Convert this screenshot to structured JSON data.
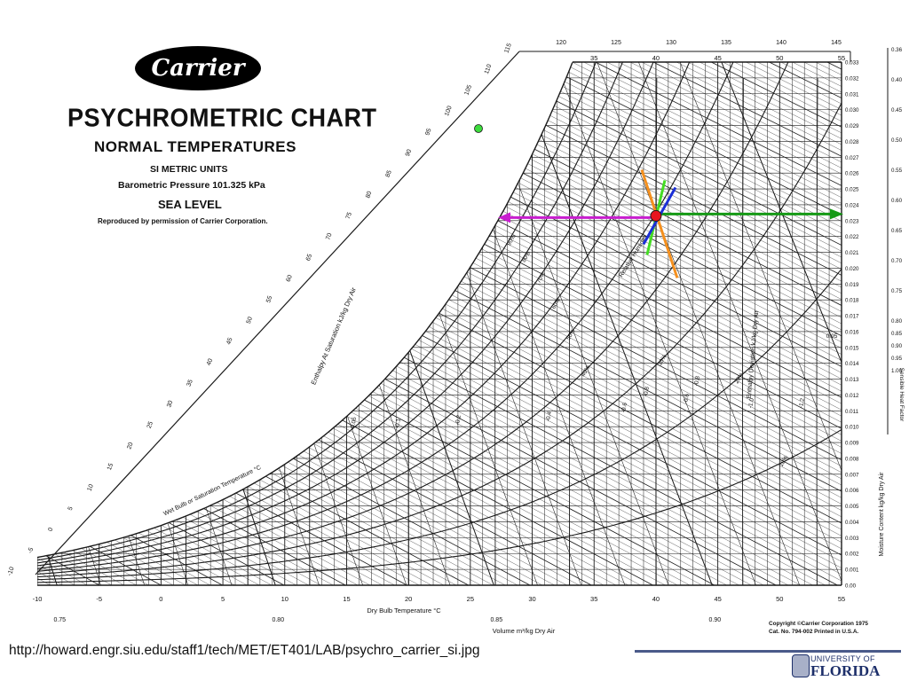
{
  "header": {
    "logo_text": "Carrier",
    "title": "PSYCHROMETRIC CHART",
    "subtitle": "NORMAL TEMPERATURES",
    "line1": "SI METRIC UNITS",
    "line2": "Barometric Pressure 101.325 kPa",
    "line3": "SEA LEVEL",
    "line4": "Reproduced by permission of Carrier Corporation."
  },
  "copyright": {
    "line1": "Copyright ©Carrier Corporation 1975",
    "line2": "Cat. No. 794-002    Printed in U.S.A."
  },
  "footer": {
    "url": "http://howard.engr.siu.edu/staff1/tech/MET/ET401/LAB/psychro_carrier_si.jpg",
    "uf_line1": "UNIVERSITY OF",
    "uf_line2": "FLORIDA"
  },
  "colors": {
    "line": "#1a1a1a",
    "state_point": "#e8141e",
    "left_arrow": "#c81ecf",
    "right_arrow": "#159a15",
    "green_marker": "#3ddc3d",
    "orange_line": "#f5901e",
    "blue_line": "#1b2fd8",
    "lime_line": "#44dd22"
  },
  "chart_data": {
    "type": "psychrometric",
    "xlabel": "Dry Bulb Temperature °C",
    "ylabel_right": "Moisture Content kg/kg Dry Air",
    "enthalpy_label": "Enthalpy At Saturation kJ/kg Dry Air",
    "wetbulb_label": "Wet Bulb or Saturation Temperature °C",
    "deviation_label": "Enthalpy Deviation kJ/kg Dry Air",
    "rh_title": "Relative Humidity",
    "volume_label": "Volume m³/kg Dry Air",
    "shf_label": "Sensible Heat Factor",
    "xlim": [
      -10,
      55
    ],
    "ylim": [
      0,
      0.033
    ],
    "x_ticks": [
      -10,
      -5,
      0,
      5,
      10,
      15,
      20,
      25,
      30,
      35,
      40,
      45,
      50,
      55
    ],
    "x_tick_labels": [
      "-10",
      "-5",
      "0",
      "5",
      "10",
      "15",
      "20",
      "25",
      "30",
      "35",
      "40",
      "45",
      "50",
      "55"
    ],
    "top_ticks": [
      35,
      40,
      45,
      50,
      55
    ],
    "top_tick_labels": [
      "35",
      "40",
      "45",
      "50",
      "55"
    ],
    "w_ticks": [
      0,
      0.001,
      0.002,
      0.003,
      0.004,
      0.005,
      0.006,
      0.007,
      0.008,
      0.009,
      0.01,
      0.011,
      0.012,
      0.013,
      0.014,
      0.015,
      0.016,
      0.017,
      0.018,
      0.019,
      0.02,
      0.021,
      0.022,
      0.023,
      0.024,
      0.025,
      0.026,
      0.027,
      0.028,
      0.029,
      0.03,
      0.031,
      0.032,
      0.033
    ],
    "w_tick_labels": [
      "0.00",
      "0.001",
      "0.002",
      "0.003",
      "0.004",
      "0.005",
      "0.006",
      "0.007",
      "0.008",
      "0.009",
      "0.010",
      "0.011",
      "0.012",
      "0.013",
      "0.014",
      "0.015",
      "0.016",
      "0.017",
      "0.018",
      "0.019",
      "0.020",
      "0.021",
      "0.022",
      "0.023",
      "0.024",
      "0.025",
      "0.026",
      "0.027",
      "0.028",
      "0.029",
      "0.030",
      "0.031",
      "0.032",
      "0.033"
    ],
    "enthalpy_ticks": [
      -10,
      -5,
      0,
      5,
      10,
      15,
      20,
      25,
      30,
      35,
      40,
      45,
      50,
      55,
      60,
      65,
      70,
      75,
      80,
      85,
      90,
      95,
      100,
      105,
      110,
      115,
      120,
      125,
      130,
      135,
      140,
      145
    ],
    "enthalpy_tick_labels": [
      "-10",
      "-5",
      "0",
      "5",
      "10",
      "15",
      "20",
      "25",
      "30",
      "35",
      "40",
      "45",
      "50",
      "55",
      "60",
      "65",
      "70",
      "75",
      "80",
      "85",
      "90",
      "95",
      "100",
      "105",
      "110",
      "115",
      "120",
      "125",
      "130",
      "135",
      "140",
      "145"
    ],
    "rh_levels": [
      10,
      20,
      30,
      40,
      50,
      60,
      70,
      80,
      90
    ],
    "rh_labels": [
      "10%",
      "20%",
      "30%",
      "40%",
      "50%",
      "60%",
      "70%",
      "80%",
      "90%"
    ],
    "volume_ticks": [
      0.75,
      0.8,
      0.85,
      0.9
    ],
    "volume_labels": [
      "0.75",
      "0.80",
      "0.85",
      "0.90"
    ],
    "shf_ticks": [
      "0.36",
      "0.40",
      "0.45",
      "0.50",
      "0.55",
      "0.60",
      "0.65",
      "0.70",
      "0.75",
      "0.80",
      "0.85",
      "0.90",
      "0.95",
      "1.00"
    ],
    "deviation_labels": [
      "-0.05",
      "-0.1",
      "-0.2",
      "-0.4",
      "-0.6",
      "-0.8",
      "-1.0",
      "-1.2",
      "-0.6",
      "-0.8"
    ],
    "state_point": {
      "t_db": 40,
      "w": 0.0233
    },
    "green_point": {
      "enthalpy": 100
    },
    "left_arrow_to": 0.0233,
    "right_arrow_to": 0.0233,
    "shf_side_value": "0.95"
  }
}
